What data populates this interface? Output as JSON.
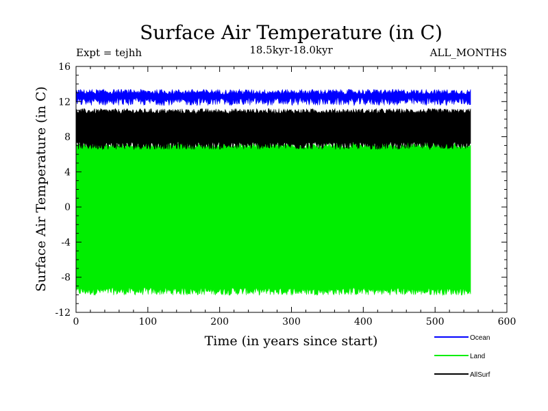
{
  "chart_data": {
    "type": "line",
    "title": "Surface Air Temperature (in C)",
    "subtitle": "18.5kyr-18.0kyr",
    "experiment_label": "Expt = tejhh",
    "period_label": "ALL_MONTHS",
    "xlabel": "Time (in years since start)",
    "ylabel": "Surface Air Temperature (in C)",
    "xlim": [
      0,
      600
    ],
    "ylim": [
      -12,
      16
    ],
    "x_ticks": [
      0,
      100,
      200,
      300,
      400,
      500,
      600
    ],
    "x_tick_labels": [
      "0",
      "100",
      "200",
      "300",
      "400",
      "500",
      "600"
    ],
    "y_ticks": [
      -12,
      -8,
      -4,
      0,
      4,
      8,
      12,
      16
    ],
    "y_tick_labels": [
      "-12",
      "-8",
      "-4",
      "0",
      "4",
      "8",
      "12",
      "16"
    ],
    "x_end": 550,
    "grid": false,
    "legend_position": "bottom-right",
    "series": [
      {
        "name": "Ocean",
        "color": "#0000ff",
        "seasonal_min": 12.0,
        "seasonal_max": 13.1
      },
      {
        "name": "Land",
        "color": "#00ee00",
        "seasonal_min": -9.6,
        "seasonal_max": 7.0
      },
      {
        "name": "AllSurf",
        "color": "#000000",
        "seasonal_min": 7.0,
        "seasonal_max": 10.9
      }
    ],
    "draw_order": [
      "Land",
      "AllSurf",
      "Ocean"
    ]
  }
}
